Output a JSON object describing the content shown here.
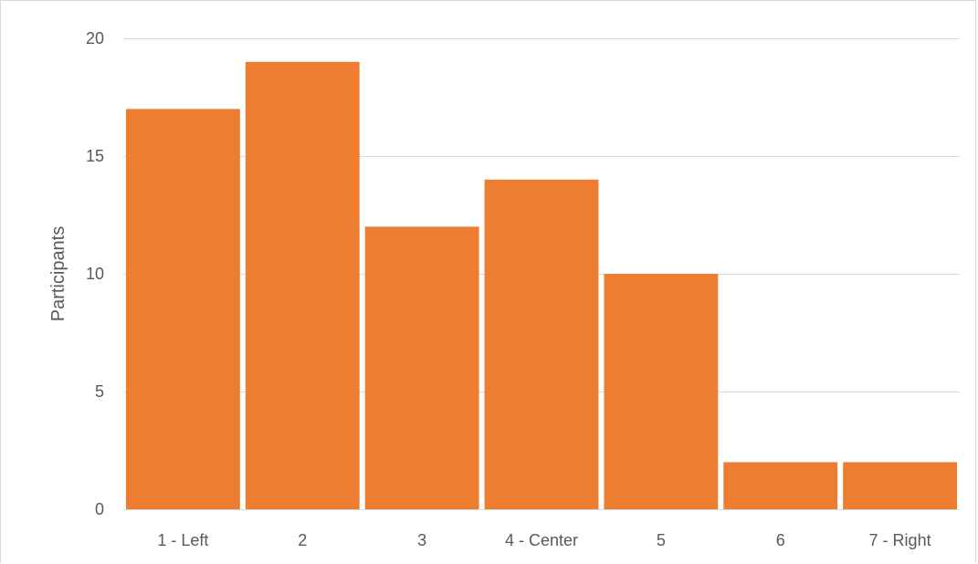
{
  "chart_data": {
    "type": "bar",
    "title": "",
    "xlabel": "",
    "ylabel": "Participants",
    "categories": [
      "1 - Left",
      "2",
      "3",
      "4 - Center",
      "5",
      "6",
      "7 - Right"
    ],
    "values": [
      17,
      19,
      12,
      14,
      10,
      2,
      2
    ],
    "ylim": [
      0,
      20
    ],
    "yticks": [
      0,
      5,
      10,
      15,
      20
    ],
    "grid": true,
    "legend": "none",
    "bar_color": "#ED7D31",
    "grid_color": "#D9D9D9",
    "text_color": "#595959"
  }
}
